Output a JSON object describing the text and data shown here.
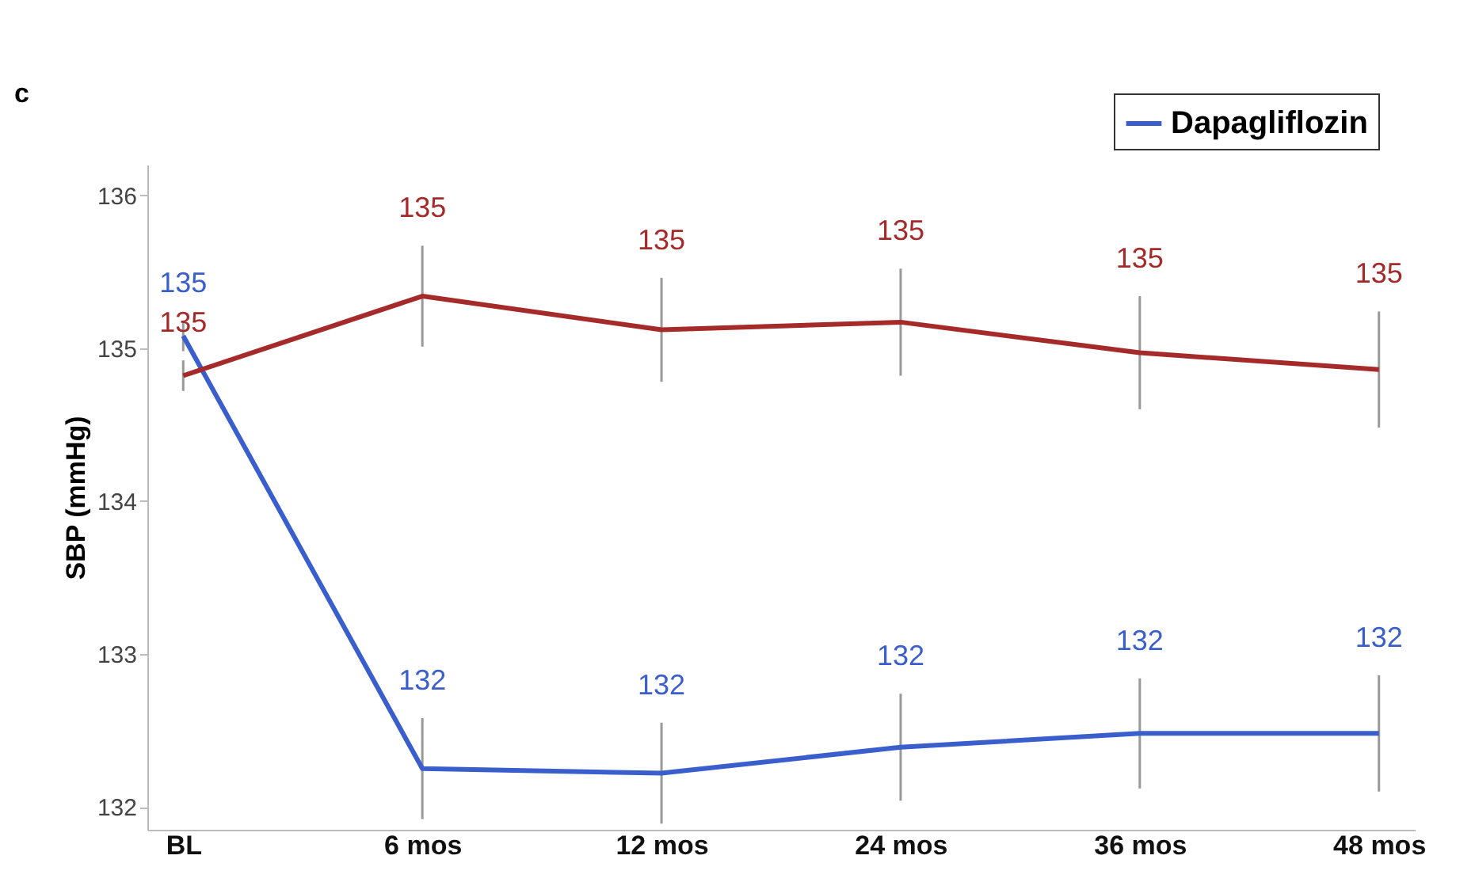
{
  "chart_data": {
    "type": "line",
    "ylabel": "SBP (mmHg)",
    "annotations": [
      "c"
    ],
    "categories": [
      "BL",
      "6 mos",
      "12 mos",
      "24 mos",
      "36 mos",
      "48 mos"
    ],
    "ylim": [
      131.85,
      136.2
    ],
    "yticks": [
      132,
      133,
      134,
      135,
      136
    ],
    "grid": false,
    "legend": "top right",
    "marker": "none",
    "line_style": "solid",
    "series": [
      {
        "name": "Dapagliflozin",
        "color": "#3a5fcd",
        "values": [
          135.08,
          132.25,
          132.22,
          132.39,
          132.48,
          132.48
        ],
        "errors": [
          0.1,
          0.33,
          0.33,
          0.35,
          0.36,
          0.38
        ],
        "value_labels": [
          "135",
          "132",
          "132",
          "132",
          "132",
          "132"
        ]
      },
      {
        "color": "#a52a2a",
        "values": [
          134.82,
          135.34,
          135.12,
          135.17,
          134.97,
          134.86
        ],
        "errors": [
          0.1,
          0.33,
          0.34,
          0.35,
          0.37,
          0.38
        ],
        "value_labels": [
          "135",
          "135",
          "135",
          "135",
          "135",
          "135"
        ]
      }
    ]
  }
}
